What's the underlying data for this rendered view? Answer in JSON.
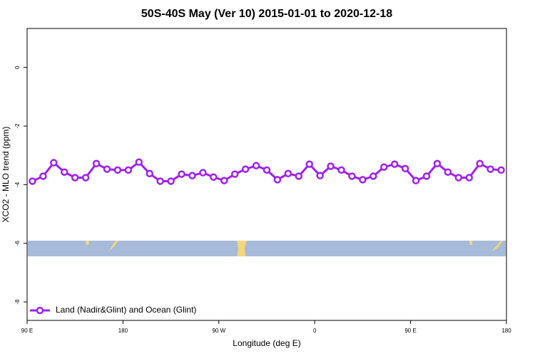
{
  "chart_data": {
    "type": "line",
    "title": "50S-40S May (Ver 10)   2015-01-01 to 2020-12-18",
    "x_label": "Longitude (deg E)",
    "y_label": "XCO2 - MLO trend (ppm)",
    "x": [
      95,
      105,
      115,
      125,
      135,
      145,
      155,
      165,
      175,
      185,
      195,
      205,
      215,
      225,
      235,
      245,
      255,
      265,
      275,
      285,
      295,
      305,
      315,
      325,
      335,
      345,
      355,
      365,
      375,
      385,
      395,
      405,
      415,
      425,
      435,
      445,
      455,
      465,
      475,
      485,
      495,
      505,
      515,
      525,
      535
    ],
    "series": [
      {
        "name": "Land (Nadir&Glint) and Ocean (Glint)",
        "color": "#a020f0",
        "values": [
          -3.88,
          -3.71,
          -3.25,
          -3.57,
          -3.76,
          -3.76,
          -3.28,
          -3.47,
          -3.5,
          -3.5,
          -3.23,
          -3.62,
          -3.88,
          -3.88,
          -3.64,
          -3.69,
          -3.59,
          -3.74,
          -3.86,
          -3.64,
          -3.47,
          -3.35,
          -3.5,
          -3.83,
          -3.62,
          -3.71,
          -3.3,
          -3.69,
          -3.37,
          -3.5,
          -3.71,
          -3.83,
          -3.71,
          -3.4,
          -3.3,
          -3.45,
          -3.86,
          -3.71,
          -3.28,
          -3.57,
          -3.76,
          -3.76,
          -3.28,
          -3.47,
          -3.5
        ]
      }
    ],
    "xlim": [
      90,
      540
    ],
    "ylim": [
      -8.63,
      1.33
    ],
    "xticks": [
      {
        "value": 90,
        "label": "90 E"
      },
      180,
      {
        "value": 270,
        "label": "90 W"
      },
      {
        "value": 360,
        "label": "0"
      },
      {
        "value": 450,
        "label": "90 E"
      },
      {
        "value": 540,
        "label": "180"
      }
    ],
    "yticks": [
      0,
      -2,
      -4,
      -6,
      -8
    ],
    "legend": "bottom-left"
  }
}
